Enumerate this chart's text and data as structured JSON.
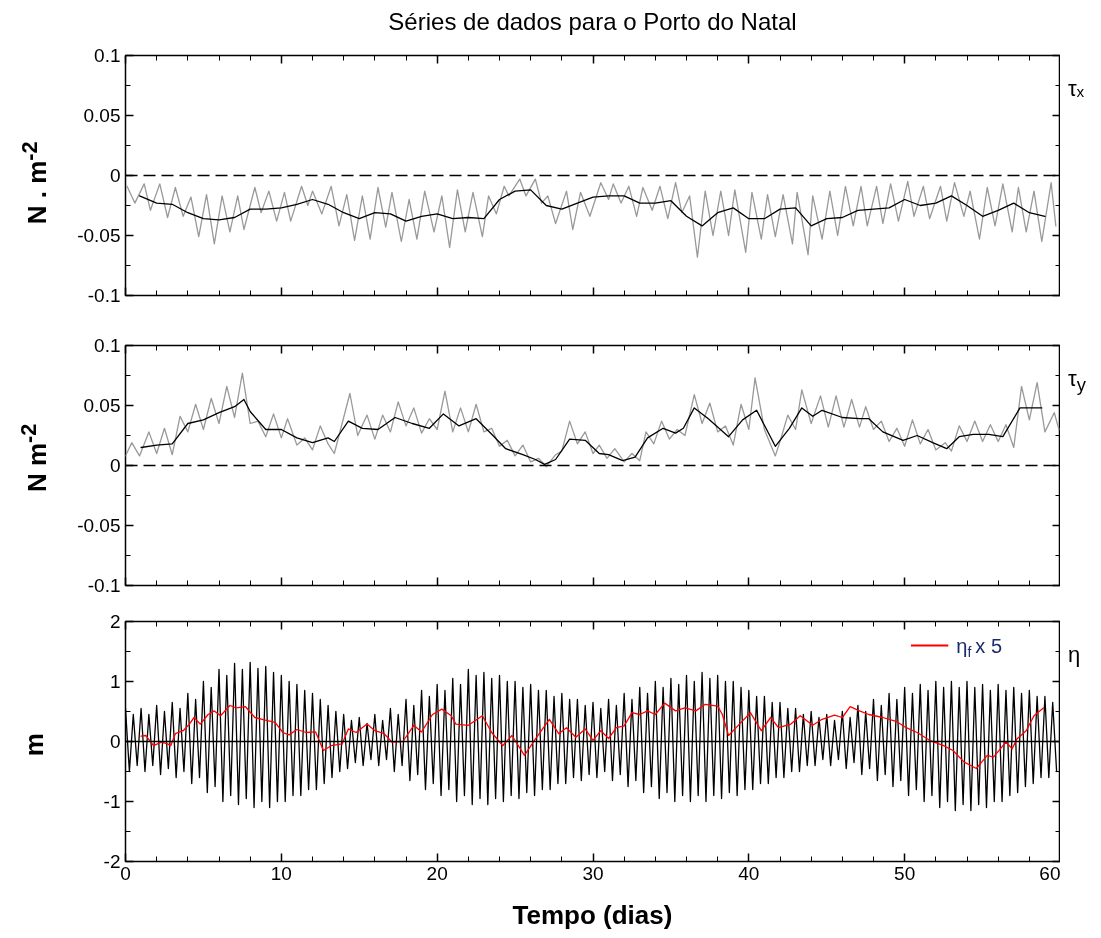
{
  "chart_data": [
    {
      "type": "line",
      "title": "Séries de dados para o Porto do Natal",
      "ylabel": "N . m$^{-2}$",
      "annotations": [
        "τₓ"
      ],
      "xlim": [
        0,
        60
      ],
      "xticks": [
        0,
        {
          "value": 2,
          "label": null
        },
        {
          "value": 4,
          "label": null
        },
        {
          "value": 6,
          "label": null
        },
        {
          "value": 8,
          "label": null
        },
        10,
        {
          "value": 12,
          "label": null
        },
        {
          "value": 14,
          "label": null
        },
        {
          "value": 16,
          "label": null
        },
        {
          "value": 18,
          "label": null
        },
        20,
        {
          "value": 22,
          "label": null
        },
        {
          "value": 24,
          "label": null
        },
        {
          "value": 26,
          "label": null
        },
        {
          "value": 28,
          "label": null
        },
        30,
        {
          "value": 32,
          "label": null
        },
        {
          "value": 34,
          "label": null
        },
        {
          "value": 36,
          "label": null
        },
        {
          "value": 38,
          "label": null
        },
        40,
        {
          "value": 42,
          "label": null
        },
        {
          "value": 44,
          "label": null
        },
        {
          "value": 46,
          "label": null
        },
        {
          "value": 48,
          "label": null
        },
        50,
        {
          "value": 52,
          "label": null
        },
        {
          "value": 54,
          "label": null
        },
        {
          "value": 56,
          "label": null
        },
        {
          "value": 58,
          "label": null
        },
        60
      ],
      "ylim": [
        -0.1,
        0.1
      ],
      "yticks": [
        -0.1,
        {
          "value": -0.075,
          "label": null
        },
        -0.05,
        {
          "value": -0.025,
          "label": null
        },
        0,
        {
          "value": 0.025,
          "label": null
        },
        0.05,
        {
          "value": 0.075,
          "label": null
        },
        0.1
      ],
      "tick_labels": "y",
      "line_style": "solid",
      "ref_lines": [
        {
          "axis": "y",
          "value": 0,
          "line_style": "dashed",
          "color": "#000000"
        }
      ],
      "series": [
        {
          "color": "#999999",
          "x": [
            0.1,
            0.6,
            1.2,
            1.6,
            2.2,
            2.7,
            3.2,
            3.7,
            4.2,
            4.7,
            5.2,
            5.7,
            6.2,
            6.7,
            7.2,
            7.6,
            8.3,
            8.7,
            9.2,
            9.7,
            10.2,
            10.6,
            11.3,
            11.7,
            12.0,
            12.6,
            13.2,
            13.7,
            14.2,
            14.7,
            15.2,
            15.7,
            16.2,
            16.7,
            17.1,
            17.7,
            18.2,
            18.7,
            19.2,
            19.8,
            20.3,
            20.8,
            21.3,
            21.8,
            22.3,
            22.9,
            23.3,
            23.8,
            24.3,
            24.6,
            25.3,
            25.7,
            26.3,
            26.7,
            27.1,
            27.6,
            28.3,
            28.7,
            29.2,
            29.8,
            30.5,
            31.0,
            31.3,
            31.8,
            32.3,
            32.8,
            33.2,
            33.8,
            34.3,
            34.8,
            35.3,
            35.7,
            36.2,
            36.7,
            37.2,
            37.7,
            38.2,
            38.7,
            39.1,
            39.8,
            40.2,
            40.8,
            41.2,
            41.7,
            42.2,
            42.8,
            43.1,
            43.8,
            44.1,
            44.7,
            45.2,
            45.7,
            46.2,
            46.7,
            47.2,
            47.6,
            48.2,
            48.6,
            49.1,
            49.6,
            50.2,
            50.6,
            51.2,
            51.6,
            52.3,
            52.7,
            53.2,
            53.8,
            54.2,
            54.8,
            55.3,
            55.8,
            56.3,
            56.9,
            57.3,
            57.8,
            58.3,
            58.8,
            59.4,
            59.7
          ],
          "values": [
            -0.009,
            -0.023,
            -0.007,
            -0.029,
            -0.007,
            -0.035,
            -0.01,
            -0.034,
            -0.018,
            -0.051,
            -0.016,
            -0.057,
            -0.017,
            -0.047,
            -0.017,
            -0.045,
            -0.01,
            -0.031,
            -0.013,
            -0.038,
            -0.014,
            -0.038,
            -0.009,
            -0.025,
            -0.013,
            -0.032,
            -0.009,
            -0.042,
            -0.016,
            -0.054,
            -0.017,
            -0.053,
            -0.01,
            -0.043,
            -0.014,
            -0.055,
            -0.02,
            -0.053,
            -0.013,
            -0.047,
            -0.017,
            -0.06,
            -0.012,
            -0.047,
            -0.014,
            -0.051,
            -0.017,
            -0.032,
            -0.009,
            -0.017,
            -0.003,
            -0.017,
            -0.003,
            -0.023,
            -0.017,
            -0.04,
            -0.013,
            -0.045,
            -0.014,
            -0.034,
            -0.006,
            -0.02,
            -0.007,
            -0.023,
            -0.009,
            -0.034,
            -0.01,
            -0.029,
            -0.009,
            -0.036,
            -0.006,
            -0.031,
            -0.017,
            -0.068,
            -0.013,
            -0.05,
            -0.013,
            -0.05,
            -0.012,
            -0.064,
            -0.014,
            -0.053,
            -0.016,
            -0.051,
            -0.016,
            -0.057,
            -0.014,
            -0.066,
            -0.017,
            -0.053,
            -0.013,
            -0.05,
            -0.009,
            -0.042,
            -0.009,
            -0.042,
            -0.009,
            -0.04,
            -0.007,
            -0.038,
            -0.005,
            -0.034,
            -0.009,
            -0.036,
            -0.009,
            -0.038,
            -0.006,
            -0.034,
            -0.013,
            -0.053,
            -0.01,
            -0.042,
            -0.007,
            -0.047,
            -0.01,
            -0.047,
            -0.013,
            -0.055,
            -0.006,
            -0.042
          ]
        },
        {
          "color": "#000000",
          "x": [
            0.9,
            2,
            3,
            4,
            5,
            6,
            7,
            8,
            9,
            10,
            11,
            12,
            13,
            14,
            15,
            16,
            17,
            18,
            19,
            20,
            21,
            22,
            23,
            24,
            25,
            26,
            27,
            28,
            29,
            30,
            31,
            32,
            33,
            34,
            35,
            36,
            37,
            38,
            39,
            40,
            41,
            42,
            43,
            44,
            45,
            46,
            47,
            48,
            49,
            50,
            51,
            52,
            53,
            54,
            55,
            56,
            57,
            58,
            59
          ],
          "values": [
            -0.017,
            -0.023,
            -0.024,
            -0.031,
            -0.036,
            -0.037,
            -0.035,
            -0.028,
            -0.028,
            -0.027,
            -0.024,
            -0.02,
            -0.024,
            -0.031,
            -0.036,
            -0.031,
            -0.032,
            -0.038,
            -0.034,
            -0.032,
            -0.036,
            -0.035,
            -0.036,
            -0.02,
            -0.013,
            -0.012,
            -0.025,
            -0.028,
            -0.023,
            -0.018,
            -0.017,
            -0.017,
            -0.023,
            -0.023,
            -0.021,
            -0.034,
            -0.042,
            -0.031,
            -0.027,
            -0.036,
            -0.036,
            -0.028,
            -0.027,
            -0.042,
            -0.036,
            -0.035,
            -0.029,
            -0.028,
            -0.027,
            -0.02,
            -0.025,
            -0.023,
            -0.017,
            -0.025,
            -0.034,
            -0.029,
            -0.023,
            -0.031,
            -0.034
          ]
        }
      ]
    },
    {
      "type": "line",
      "ylabel": "N m$^{-2}$",
      "annotations": [
        "τ$_{y}$"
      ],
      "xlim": [
        0,
        60
      ],
      "xticks": [
        0,
        {
          "value": 2,
          "label": null
        },
        {
          "value": 4,
          "label": null
        },
        {
          "value": 6,
          "label": null
        },
        {
          "value": 8,
          "label": null
        },
        10,
        {
          "value": 12,
          "label": null
        },
        {
          "value": 14,
          "label": null
        },
        {
          "value": 16,
          "label": null
        },
        {
          "value": 18,
          "label": null
        },
        20,
        {
          "value": 22,
          "label": null
        },
        {
          "value": 24,
          "label": null
        },
        {
          "value": 26,
          "label": null
        },
        {
          "value": 28,
          "label": null
        },
        30,
        {
          "value": 32,
          "label": null
        },
        {
          "value": 34,
          "label": null
        },
        {
          "value": 36,
          "label": null
        },
        {
          "value": 38,
          "label": null
        },
        40,
        {
          "value": 42,
          "label": null
        },
        {
          "value": 44,
          "label": null
        },
        {
          "value": 46,
          "label": null
        },
        {
          "value": 48,
          "label": null
        },
        50,
        {
          "value": 52,
          "label": null
        },
        {
          "value": 54,
          "label": null
        },
        {
          "value": 56,
          "label": null
        },
        {
          "value": 58,
          "label": null
        },
        60
      ],
      "ylim": [
        -0.1,
        0.1
      ],
      "yticks": [
        -0.1,
        {
          "value": -0.075,
          "label": null
        },
        -0.05,
        {
          "value": -0.025,
          "label": null
        },
        0,
        {
          "value": 0.025,
          "label": null
        },
        0.05,
        {
          "value": 0.075,
          "label": null
        },
        0.1
      ],
      "tick_labels": "y",
      "line_style": "solid",
      "ref_lines": [
        {
          "axis": "y",
          "value": 0,
          "line_style": "dashed",
          "color": "#000000"
        }
      ],
      "series": [
        {
          "color": "#999999",
          "x": [
            0.0,
            0.4,
            0.9,
            1.5,
            2.0,
            2.5,
            3.0,
            3.5,
            4.0,
            4.5,
            5.0,
            5.5,
            6.0,
            6.5,
            7.0,
            7.5,
            8.0,
            8.5,
            9.0,
            9.5,
            10.0,
            10.4,
            11.0,
            11.5,
            12.0,
            12.5,
            13.0,
            13.4,
            14.4,
            14.9,
            15.5,
            16.0,
            16.5,
            17.0,
            17.5,
            18.0,
            18.5,
            19.0,
            19.5,
            20.0,
            20.5,
            21.0,
            21.5,
            22.0,
            22.5,
            23.0,
            23.5,
            24.0,
            24.5,
            25.0,
            25.5,
            26.0,
            26.5,
            27.0,
            27.6,
            28.0,
            28.5,
            29.0,
            29.5,
            30.0,
            30.4,
            30.9,
            31.4,
            32.0,
            32.5,
            33.0,
            33.4,
            33.9,
            34.4,
            34.9,
            35.4,
            35.9,
            36.5,
            37.0,
            37.5,
            38.0,
            38.5,
            39.0,
            39.5,
            40.0,
            40.4,
            41.0,
            41.7,
            42.0,
            42.5,
            43.0,
            43.4,
            44.0,
            44.6,
            45.1,
            45.6,
            46.1,
            46.6,
            47.1,
            47.5,
            48.0,
            48.5,
            49.0,
            49.5,
            50.0,
            50.5,
            51.0,
            51.5,
            52.0,
            52.6,
            53.0,
            53.5,
            54.0,
            54.5,
            55.0,
            55.5,
            56.0,
            56.5,
            57.0,
            57.5,
            58.0,
            58.5,
            59.0,
            59.6,
            59.9
          ],
          "values": [
            0.008,
            0.019,
            0.008,
            0.028,
            0.01,
            0.031,
            0.009,
            0.041,
            0.028,
            0.051,
            0.03,
            0.056,
            0.035,
            0.066,
            0.04,
            0.077,
            0.035,
            0.037,
            0.024,
            0.043,
            0.023,
            0.039,
            0.017,
            0.023,
            0.013,
            0.033,
            0.018,
            0.01,
            0.06,
            0.025,
            0.042,
            0.022,
            0.042,
            0.028,
            0.053,
            0.033,
            0.048,
            0.027,
            0.039,
            0.03,
            0.062,
            0.028,
            0.048,
            0.028,
            0.051,
            0.028,
            0.031,
            0.016,
            0.021,
            0.008,
            0.017,
            0.003,
            0.006,
            -0.001,
            0.009,
            0.012,
            0.037,
            0.018,
            0.028,
            0.01,
            0.017,
            0.006,
            0.014,
            0.003,
            0.01,
            0.004,
            0.028,
            0.018,
            0.037,
            0.022,
            0.03,
            0.025,
            0.059,
            0.035,
            0.052,
            0.028,
            0.033,
            0.017,
            0.051,
            0.03,
            0.073,
            0.03,
            0.008,
            0.02,
            0.042,
            0.03,
            0.063,
            0.035,
            0.058,
            0.032,
            0.058,
            0.032,
            0.055,
            0.032,
            0.049,
            0.03,
            0.037,
            0.02,
            0.031,
            0.016,
            0.038,
            0.018,
            0.03,
            0.013,
            0.019,
            0.012,
            0.033,
            0.02,
            0.037,
            0.02,
            0.034,
            0.02,
            0.034,
            0.015,
            0.066,
            0.038,
            0.069,
            0.028,
            0.044,
            0.03
          ]
        },
        {
          "color": "#000000",
          "x": [
            1.0,
            2,
            3,
            4,
            5,
            6,
            7,
            7.6,
            8,
            9,
            10,
            11,
            12,
            13,
            13.4,
            14.3,
            15.2,
            16.2,
            17.3,
            18.4,
            19.5,
            20.4,
            21.4,
            22.5,
            23.5,
            24.4,
            25.5,
            26.3,
            26.9,
            27.6,
            28.5,
            29.5,
            30.4,
            31,
            31.9,
            32.7,
            33.5,
            34.5,
            35.3,
            35.8,
            36.5,
            37.4,
            38.7,
            39.6,
            40.5,
            41.7,
            42.6,
            43.4,
            44.1,
            44.7,
            46.0,
            47.1,
            47.7,
            48.6,
            49.9,
            50.8,
            51.8,
            52.7,
            53.5,
            54.4,
            55.4,
            56.3,
            57.4,
            58.8
          ],
          "values": [
            0.015,
            0.017,
            0.018,
            0.035,
            0.038,
            0.044,
            0.049,
            0.055,
            0.045,
            0.03,
            0.03,
            0.023,
            0.019,
            0.023,
            0.02,
            0.037,
            0.031,
            0.03,
            0.04,
            0.035,
            0.031,
            0.043,
            0.033,
            0.039,
            0.026,
            0.014,
            0.009,
            0.005,
            0.001,
            0.005,
            0.022,
            0.021,
            0.01,
            0.009,
            0.004,
            0.007,
            0.023,
            0.031,
            0.027,
            0.031,
            0.048,
            0.039,
            0.024,
            0.038,
            0.046,
            0.016,
            0.031,
            0.048,
            0.041,
            0.046,
            0.04,
            0.039,
            0.039,
            0.028,
            0.021,
            0.025,
            0.019,
            0.014,
            0.024,
            0.026,
            0.026,
            0.024,
            0.048,
            0.048
          ]
        }
      ]
    },
    {
      "type": "line",
      "xlabel": "Tempo (dias)",
      "ylabel": "m",
      "annotations": [
        "η"
      ],
      "legend": "top right",
      "xlim": [
        0,
        60
      ],
      "xticks": [
        0,
        {
          "value": 2,
          "label": null
        },
        {
          "value": 4,
          "label": null
        },
        {
          "value": 6,
          "label": null
        },
        {
          "value": 8,
          "label": null
        },
        10,
        {
          "value": 12,
          "label": null
        },
        {
          "value": 14,
          "label": null
        },
        {
          "value": 16,
          "label": null
        },
        {
          "value": 18,
          "label": null
        },
        20,
        {
          "value": 22,
          "label": null
        },
        {
          "value": 24,
          "label": null
        },
        {
          "value": 26,
          "label": null
        },
        {
          "value": 28,
          "label": null
        },
        30,
        {
          "value": 32,
          "label": null
        },
        {
          "value": 34,
          "label": null
        },
        {
          "value": 36,
          "label": null
        },
        {
          "value": 38,
          "label": null
        },
        40,
        {
          "value": 42,
          "label": null
        },
        {
          "value": 44,
          "label": null
        },
        {
          "value": 46,
          "label": null
        },
        {
          "value": 48,
          "label": null
        },
        50,
        {
          "value": 52,
          "label": null
        },
        {
          "value": 54,
          "label": null
        },
        {
          "value": 56,
          "label": null
        },
        {
          "value": 58,
          "label": null
        },
        60
      ],
      "ylim": [
        -2,
        2
      ],
      "yticks": [
        -2,
        {
          "value": -1.5,
          "label": null
        },
        -1,
        {
          "value": -0.5,
          "label": null
        },
        0,
        {
          "value": 0.5,
          "label": null
        },
        1,
        {
          "value": 1.5,
          "label": null
        },
        2
      ],
      "line_style": "solid",
      "ref_lines": [
        {
          "axis": "y",
          "value": 0,
          "line_style": "solid",
          "color": "#000000"
        }
      ],
      "series": [
        {
          "color": "#000000",
          "x": [
            0,
            0.25,
            0.5,
            0.75,
            1,
            1.25,
            1.5,
            1.75,
            2,
            2.25,
            2.5,
            2.75,
            3,
            3.25,
            3.5,
            3.75,
            4,
            4.25,
            4.5,
            4.75,
            5,
            5.25,
            5.5,
            5.75,
            6,
            6.25,
            6.5,
            6.75,
            7,
            7.25,
            7.5,
            7.75,
            8,
            8.25,
            8.5,
            8.75,
            9,
            9.25,
            9.5,
            9.75,
            10,
            10.25,
            10.5,
            10.75,
            11,
            11.25,
            11.5,
            11.75,
            12,
            12.25,
            12.5,
            12.75,
            13,
            13.25,
            13.5,
            13.75,
            14,
            14.25,
            14.5,
            14.75,
            15,
            15.25,
            15.5,
            15.75,
            16,
            16.25,
            16.5,
            16.75,
            17,
            17.25,
            17.5,
            17.75,
            18,
            18.25,
            18.5,
            18.75,
            19,
            19.25,
            19.5,
            19.75,
            20,
            20.25,
            20.5,
            20.75,
            21,
            21.25,
            21.5,
            21.75,
            22,
            22.25,
            22.5,
            22.75,
            23,
            23.25,
            23.5,
            23.75,
            24,
            24.25,
            24.5,
            24.75,
            25,
            25.25,
            25.5,
            25.75,
            26,
            26.25,
            26.5,
            26.75,
            27,
            27.25,
            27.5,
            27.75,
            28,
            28.25,
            28.5,
            28.75,
            29,
            29.25,
            29.5,
            29.75,
            30,
            30.25,
            30.5,
            30.75,
            31,
            31.25,
            31.5,
            31.75,
            32,
            32.25,
            32.5,
            32.75,
            33,
            33.25,
            33.5,
            33.75,
            34,
            34.25,
            34.5,
            34.75,
            35,
            35.25,
            35.5,
            35.75,
            36,
            36.25,
            36.5,
            36.75,
            37,
            37.25,
            37.5,
            37.75,
            38,
            38.25,
            38.5,
            38.75,
            39,
            39.25,
            39.5,
            39.75,
            40,
            40.25,
            40.5,
            40.75,
            41,
            41.25,
            41.5,
            41.75,
            42,
            42.25,
            42.5,
            42.75,
            43,
            43.25,
            43.5,
            43.75,
            44,
            44.25,
            44.5,
            44.75,
            45,
            45.25,
            45.5,
            45.75,
            46,
            46.25,
            46.5,
            46.75,
            47,
            47.25,
            47.5,
            47.75,
            48,
            48.25,
            48.5,
            48.75,
            49,
            49.25,
            49.5,
            49.75,
            50,
            50.25,
            50.5,
            50.75,
            51,
            51.25,
            51.5,
            51.75,
            52,
            52.25,
            52.5,
            52.75,
            53,
            53.25,
            53.5,
            53.75,
            54,
            54.25,
            54.5,
            54.75,
            55,
            55.25,
            55.5,
            55.75,
            56,
            56.25,
            56.5,
            56.75,
            57,
            57.25,
            57.5,
            57.75,
            58,
            58.25,
            58.5,
            58.75,
            59,
            59.25,
            59.5,
            59.75
          ],
          "values": [
            0.55,
            -0.5,
            0.45,
            -0.4,
            0.55,
            -0.5,
            0.45,
            -0.4,
            0.6,
            -0.55,
            0.5,
            -0.45,
            0.65,
            -0.6,
            0.55,
            -0.5,
            0.8,
            -0.7,
            0.7,
            -0.6,
            1.0,
            -0.85,
            0.9,
            -0.75,
            1.2,
            -1.0,
            1.1,
            -0.9,
            1.3,
            -1.05,
            1.2,
            -0.95,
            1.32,
            -1.1,
            1.22,
            -1.0,
            1.25,
            -1.1,
            1.15,
            -1.0,
            1.1,
            -1.0,
            1.0,
            -0.9,
            0.95,
            -0.9,
            0.85,
            -0.8,
            0.8,
            -0.8,
            0.7,
            -0.7,
            0.6,
            -0.6,
            0.5,
            -0.5,
            0.45,
            -0.45,
            0.35,
            -0.35,
            0.4,
            -0.4,
            0.3,
            -0.3,
            0.45,
            -0.4,
            0.35,
            -0.3,
            0.55,
            -0.5,
            0.45,
            -0.4,
            0.7,
            -0.65,
            0.6,
            -0.55,
            0.85,
            -0.8,
            0.75,
            -0.7,
            0.95,
            -0.9,
            0.85,
            -0.8,
            1.05,
            -1.0,
            0.95,
            -0.9,
            1.2,
            -1.05,
            1.1,
            -0.95,
            1.15,
            -1.05,
            1.05,
            -0.95,
            1.1,
            -1.0,
            1.0,
            -0.9,
            1.0,
            -0.95,
            0.9,
            -0.85,
            0.95,
            -0.9,
            0.85,
            -0.8,
            0.85,
            -0.8,
            0.75,
            -0.7,
            0.8,
            -0.7,
            0.7,
            -0.6,
            0.7,
            -0.65,
            0.6,
            -0.55,
            0.65,
            -0.6,
            0.55,
            -0.5,
            0.7,
            -0.65,
            0.6,
            -0.55,
            0.8,
            -0.75,
            0.7,
            -0.65,
            0.9,
            -0.85,
            0.8,
            -0.75,
            1.0,
            -0.95,
            0.9,
            -0.85,
            1.05,
            -1.0,
            0.95,
            -0.9,
            1.1,
            -1.0,
            1.0,
            -0.9,
            1.15,
            -1.0,
            1.05,
            -0.9,
            1.1,
            -0.95,
            1.0,
            -0.85,
            1.0,
            -0.9,
            0.9,
            -0.8,
            0.85,
            -0.8,
            0.75,
            -0.7,
            0.75,
            -0.7,
            0.65,
            -0.6,
            0.65,
            -0.6,
            0.55,
            -0.5,
            0.55,
            -0.5,
            0.45,
            -0.4,
            0.5,
            -0.4,
            0.4,
            -0.3,
            0.45,
            -0.4,
            0.35,
            -0.3,
            0.5,
            -0.45,
            0.4,
            -0.35,
            0.6,
            -0.55,
            0.5,
            -0.45,
            0.7,
            -0.65,
            0.6,
            -0.55,
            0.8,
            -0.75,
            0.7,
            -0.65,
            0.9,
            -0.9,
            0.8,
            -0.8,
            0.95,
            -1.0,
            0.85,
            -0.9,
            1.0,
            -1.1,
            0.9,
            -1.0,
            1.0,
            -1.15,
            0.9,
            -1.05,
            1.0,
            -1.15,
            0.9,
            -1.05,
            0.95,
            -1.1,
            0.85,
            -1.0,
            0.95,
            -1.0,
            0.85,
            -0.9,
            0.9,
            -0.85,
            0.8,
            -0.75,
            0.85,
            -0.7,
            0.75,
            -0.6,
            0.75,
            -0.6,
            0.65,
            -0.5
          ]
        },
        {
          "name": "η$_{f}$ x 5",
          "color": "#ff0000",
          "x": [
            1.0,
            1.3,
            1.8,
            2.3,
            2.7,
            2.9,
            3.2,
            3.7,
            4.1,
            4.4,
            4.8,
            5.3,
            5.7,
            6.1,
            6.7,
            7.1,
            7.7,
            8.3,
            8.9,
            9.6,
            10.1,
            10.5,
            11.0,
            11.6,
            12.2,
            12.7,
            13.2,
            13.9,
            14.3,
            14.8,
            15.5,
            16.0,
            16.6,
            17.1,
            17.8,
            18.5,
            19.0,
            19.7,
            20.3,
            20.9,
            21.2,
            22.0,
            22.9,
            23.5,
            24.2,
            24.8,
            25.6,
            26.3,
            27.2,
            27.8,
            28.3,
            28.9,
            29.5,
            30.0,
            30.5,
            31.0,
            31.5,
            32.0,
            32.5,
            33.0,
            33.5,
            34.0,
            34.6,
            35.3,
            35.9,
            36.6,
            37.2,
            38.0,
            38.3,
            38.7,
            39.4,
            40.1,
            40.8,
            41.4,
            41.9,
            42.7,
            43.3,
            44.1,
            44.7,
            45.5,
            46.0,
            46.5,
            47.1,
            47.7,
            48.6,
            49.5,
            50.1,
            50.8,
            51.6,
            52.5,
            53.1,
            53.8,
            54.6,
            55.3,
            55.7,
            56.5,
            56.9,
            57.2,
            57.8,
            58.3,
            58.9
          ],
          "values": [
            0.09,
            0.1,
            -0.07,
            -0.01,
            -0.04,
            -0.07,
            0.13,
            0.18,
            0.29,
            0.4,
            0.29,
            0.45,
            0.51,
            0.43,
            0.6,
            0.56,
            0.58,
            0.4,
            0.36,
            0.32,
            0.15,
            0.11,
            0.2,
            0.15,
            0.16,
            -0.15,
            -0.07,
            -0.04,
            0.21,
            0.15,
            0.29,
            0.18,
            0.13,
            -0.01,
            0.0,
            0.27,
            0.16,
            0.45,
            0.54,
            0.43,
            0.29,
            0.27,
            0.43,
            0.15,
            -0.07,
            0.1,
            -0.23,
            0.04,
            0.37,
            0.13,
            0.23,
            0.07,
            0.21,
            0.02,
            0.18,
            0.05,
            0.23,
            0.26,
            0.48,
            0.45,
            0.51,
            0.45,
            0.64,
            0.51,
            0.56,
            0.51,
            0.62,
            0.59,
            0.45,
            0.1,
            0.29,
            0.48,
            0.18,
            0.4,
            0.23,
            0.29,
            0.43,
            0.27,
            0.37,
            0.44,
            0.4,
            0.58,
            0.51,
            0.45,
            0.4,
            0.33,
            0.23,
            0.15,
            0.02,
            -0.07,
            -0.15,
            -0.34,
            -0.45,
            -0.23,
            -0.26,
            -0.01,
            -0.12,
            0.04,
            0.18,
            0.43,
            0.56
          ]
        }
      ]
    }
  ]
}
